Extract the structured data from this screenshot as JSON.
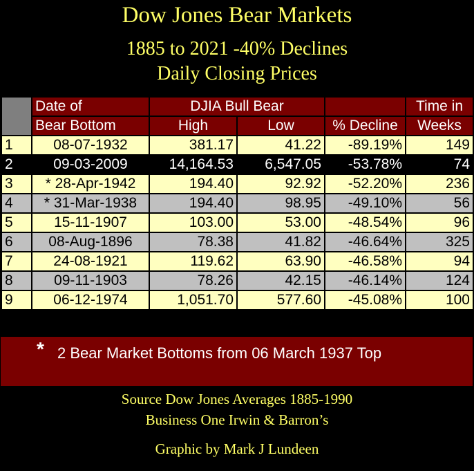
{
  "title": "Dow Jones Bear Markets",
  "subtitle_1": "1885 to 2021 -40% Declines",
  "subtitle_2": "Daily Closing Prices",
  "header": {
    "date_line1": "Date of",
    "date_line2": "Bear Bottom",
    "djia_group": "DJIA Bull Bear",
    "high": "High",
    "low": "Low",
    "decline": "% Decline",
    "time_line1": "Time in",
    "time_line2": "Weeks"
  },
  "colors": {
    "header_bg": "#7a0000",
    "title_text": "#ffff66",
    "row_light": "#ffffc0",
    "row_gray": "#c0c0c0",
    "row_dark": "#000000"
  },
  "chart_data": {
    "type": "table",
    "title": "Dow Jones Bear Markets",
    "columns": [
      "",
      "Date of Bear Bottom",
      "High",
      "Low",
      "% Decline",
      "Time in Weeks"
    ],
    "rows": [
      {
        "rank": "1",
        "date": "08-07-1932",
        "high": "381.17",
        "low": "41.22",
        "decline": "-89.19%",
        "weeks": "149",
        "style": "light"
      },
      {
        "rank": "2",
        "date": "09-03-2009",
        "high": "14,164.53",
        "low": "6,547.05",
        "decline": "-53.78%",
        "weeks": "74",
        "style": "dark"
      },
      {
        "rank": "3",
        "date": "* 28-Apr-1942",
        "high": "194.40",
        "low": "92.92",
        "decline": "-52.20%",
        "weeks": "236",
        "style": "light"
      },
      {
        "rank": "4",
        "date": "* 31-Mar-1938",
        "high": "194.40",
        "low": "98.95",
        "decline": "-49.10%",
        "weeks": "56",
        "style": "gray"
      },
      {
        "rank": "5",
        "date": "15-11-1907",
        "high": "103.00",
        "low": "53.00",
        "decline": "-48.54%",
        "weeks": "96",
        "style": "light"
      },
      {
        "rank": "6",
        "date": "08-Aug-1896",
        "high": "78.38",
        "low": "41.82",
        "decline": "-46.64%",
        "weeks": "325",
        "style": "gray"
      },
      {
        "rank": "7",
        "date": "24-08-1921",
        "high": "119.62",
        "low": "63.90",
        "decline": "-46.58%",
        "weeks": "94",
        "style": "light"
      },
      {
        "rank": "8",
        "date": "09-11-1903",
        "high": "78.26",
        "low": "42.15",
        "decline": "-46.14%",
        "weeks": "124",
        "style": "gray"
      },
      {
        "rank": "9",
        "date": "06-12-1974",
        "high": "1,051.70",
        "low": "577.60",
        "decline": "-45.08%",
        "weeks": "100",
        "style": "light"
      }
    ]
  },
  "footnote": {
    "star": "*",
    "text": "2 Bear Market Bottoms from 06 March 1937 Top"
  },
  "source_1": "Source Dow Jones Averages 1885-1990",
  "source_2": "Business One Irwin & Barron’s",
  "credit": "Graphic by Mark J Lundeen"
}
